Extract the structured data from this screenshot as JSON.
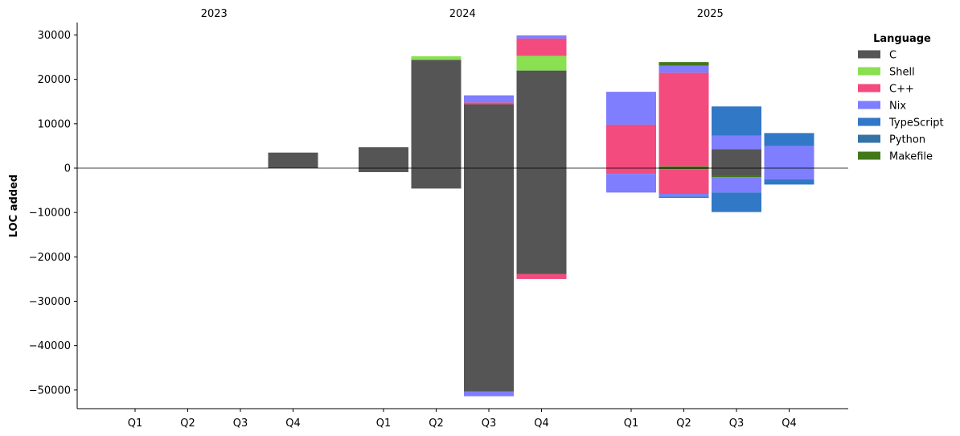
{
  "chart_data": {
    "type": "bar",
    "stacked": true,
    "diverging": true,
    "ylabel": "LOC added",
    "ylim": [
      -54000,
      32500
    ],
    "yticks": [
      30000,
      20000,
      10000,
      0,
      -10000,
      -20000,
      -30000,
      -40000,
      -50000
    ],
    "groups": [
      {
        "label": "2023",
        "quarters": [
          "Q1",
          "Q2",
          "Q3",
          "Q4"
        ]
      },
      {
        "label": "2024",
        "quarters": [
          "Q1",
          "Q2",
          "Q3",
          "Q4"
        ]
      },
      {
        "label": "2025",
        "quarters": [
          "Q1",
          "Q2",
          "Q3",
          "Q4"
        ]
      }
    ],
    "legend": {
      "title": "Language",
      "placement": "outside-right",
      "items": [
        {
          "name": "C",
          "color": "#555555"
        },
        {
          "name": "Shell",
          "color": "#89e051"
        },
        {
          "name": "C++",
          "color": "#f34b7d"
        },
        {
          "name": "Nix",
          "color": "#7e7eff"
        },
        {
          "name": "TypeScript",
          "color": "#3178c6"
        },
        {
          "name": "Python",
          "color": "#3572a5"
        },
        {
          "name": "Makefile",
          "color": "#427819"
        }
      ]
    },
    "bars": [
      {
        "group": "2023",
        "quarter": "Q1",
        "segments": []
      },
      {
        "group": "2023",
        "quarter": "Q2",
        "segments": []
      },
      {
        "group": "2023",
        "quarter": "Q3",
        "segments": []
      },
      {
        "group": "2023",
        "quarter": "Q4",
        "segments": [
          {
            "language": "C",
            "value": 3500
          }
        ]
      },
      {
        "group": "2024",
        "quarter": "Q1",
        "segments": [
          {
            "language": "C",
            "value": 4700
          },
          {
            "language": "C",
            "value": -900
          }
        ]
      },
      {
        "group": "2024",
        "quarter": "Q2",
        "segments": [
          {
            "language": "C",
            "value": 24400
          },
          {
            "language": "Shell",
            "value": 800
          },
          {
            "language": "C",
            "value": -4600
          }
        ]
      },
      {
        "group": "2024",
        "quarter": "Q3",
        "segments": [
          {
            "language": "C",
            "value": 14400
          },
          {
            "language": "C++",
            "value": 400
          },
          {
            "language": "Nix",
            "value": 1600
          },
          {
            "language": "C",
            "value": -50300
          },
          {
            "language": "Nix",
            "value": -1100
          }
        ]
      },
      {
        "group": "2024",
        "quarter": "Q4",
        "segments": [
          {
            "language": "C",
            "value": 22000
          },
          {
            "language": "Shell",
            "value": 3300
          },
          {
            "language": "C++",
            "value": 3900
          },
          {
            "language": "Nix",
            "value": 700
          },
          {
            "language": "C",
            "value": -23900
          },
          {
            "language": "C++",
            "value": -1100
          }
        ]
      },
      {
        "group": "2025",
        "quarter": "Q1",
        "segments": [
          {
            "language": "C++",
            "value": 9800
          },
          {
            "language": "Nix",
            "value": 7400
          },
          {
            "language": "C++",
            "value": -1300
          },
          {
            "language": "Nix",
            "value": -4200
          }
        ]
      },
      {
        "group": "2025",
        "quarter": "Q2",
        "segments": [
          {
            "language": "C",
            "value": 200
          },
          {
            "language": "Makefile",
            "value": 200
          },
          {
            "language": "C++",
            "value": 21100
          },
          {
            "language": "Nix",
            "value": 1600
          },
          {
            "language": "Makefile",
            "value": 800
          },
          {
            "language": "Makefile",
            "value": -200
          },
          {
            "language": "C++",
            "value": -5600
          },
          {
            "language": "Nix",
            "value": -600
          },
          {
            "language": "TypeScript",
            "value": -300
          }
        ]
      },
      {
        "group": "2025",
        "quarter": "Q3",
        "segments": [
          {
            "language": "C",
            "value": 4300
          },
          {
            "language": "Nix",
            "value": 3000
          },
          {
            "language": "TypeScript",
            "value": 6600
          },
          {
            "language": "C",
            "value": -1800
          },
          {
            "language": "Makefile",
            "value": -200
          },
          {
            "language": "Nix",
            "value": -3500
          },
          {
            "language": "TypeScript",
            "value": -4400
          }
        ]
      },
      {
        "group": "2025",
        "quarter": "Q4",
        "segments": [
          {
            "language": "Nix",
            "value": 5000
          },
          {
            "language": "TypeScript",
            "value": 2900
          },
          {
            "language": "Nix",
            "value": -2500
          },
          {
            "language": "TypeScript",
            "value": -1200
          }
        ]
      }
    ]
  }
}
